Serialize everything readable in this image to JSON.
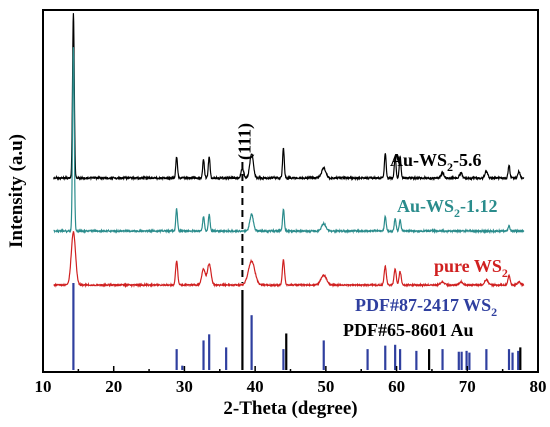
{
  "chart_data": {
    "type": "line",
    "title": "",
    "xlabel": "2-Theta (degree)",
    "ylabel": "Intensity (a.u)",
    "xlim": [
      10,
      80
    ],
    "x_ticks": [
      10,
      20,
      30,
      40,
      50,
      60,
      70,
      80
    ],
    "y_ticks": [],
    "grid": false,
    "annotation": {
      "text": "(111)",
      "x": 38.2
    },
    "series": [
      {
        "name_main": "Au-WS",
        "name_sub": "2",
        "name_tail": "-5.6",
        "color": "#000000",
        "peaks": [
          {
            "x": 14.3,
            "h": 1.0,
            "w": 0.12
          },
          {
            "x": 28.9,
            "h": 0.13,
            "w": 0.12
          },
          {
            "x": 32.7,
            "h": 0.11,
            "w": 0.12
          },
          {
            "x": 33.5,
            "h": 0.13,
            "w": 0.12
          },
          {
            "x": 38.2,
            "h": 0.06,
            "w": 0.18
          },
          {
            "x": 39.5,
            "h": 0.15,
            "w": 0.25
          },
          {
            "x": 44.0,
            "h": 0.18,
            "w": 0.12
          },
          {
            "x": 49.7,
            "h": 0.06,
            "w": 0.3
          },
          {
            "x": 58.4,
            "h": 0.15,
            "w": 0.12
          },
          {
            "x": 59.8,
            "h": 0.13,
            "w": 0.12
          },
          {
            "x": 60.5,
            "h": 0.13,
            "w": 0.12
          },
          {
            "x": 66.5,
            "h": 0.03,
            "w": 0.2
          },
          {
            "x": 69.1,
            "h": 0.03,
            "w": 0.2
          },
          {
            "x": 72.7,
            "h": 0.04,
            "w": 0.2
          },
          {
            "x": 75.9,
            "h": 0.08,
            "w": 0.12
          },
          {
            "x": 77.3,
            "h": 0.04,
            "w": 0.15
          }
        ]
      },
      {
        "name_main": "Au-WS",
        "name_sub": "2",
        "name_tail": "-1.12",
        "color": "#2a8c8c",
        "peaks": [
          {
            "x": 14.3,
            "h": 1.0,
            "w": 0.12
          },
          {
            "x": 28.9,
            "h": 0.12,
            "w": 0.12
          },
          {
            "x": 32.7,
            "h": 0.08,
            "w": 0.12
          },
          {
            "x": 33.5,
            "h": 0.09,
            "w": 0.12
          },
          {
            "x": 39.5,
            "h": 0.09,
            "w": 0.25
          },
          {
            "x": 44.0,
            "h": 0.12,
            "w": 0.12
          },
          {
            "x": 49.7,
            "h": 0.04,
            "w": 0.3
          },
          {
            "x": 58.4,
            "h": 0.08,
            "w": 0.12
          },
          {
            "x": 59.8,
            "h": 0.07,
            "w": 0.12
          },
          {
            "x": 60.5,
            "h": 0.06,
            "w": 0.12
          },
          {
            "x": 75.9,
            "h": 0.03,
            "w": 0.12
          }
        ]
      },
      {
        "name_main": "pure WS",
        "name_sub": "2",
        "name_tail": "",
        "color": "#d02020",
        "peaks": [
          {
            "x": 14.3,
            "h": 1.0,
            "w": 0.3
          },
          {
            "x": 28.9,
            "h": 0.45,
            "w": 0.15
          },
          {
            "x": 32.7,
            "h": 0.3,
            "w": 0.25
          },
          {
            "x": 33.5,
            "h": 0.4,
            "w": 0.25
          },
          {
            "x": 39.5,
            "h": 0.45,
            "w": 0.45
          },
          {
            "x": 44.0,
            "h": 0.48,
            "w": 0.15
          },
          {
            "x": 49.7,
            "h": 0.18,
            "w": 0.4
          },
          {
            "x": 58.4,
            "h": 0.35,
            "w": 0.15
          },
          {
            "x": 59.8,
            "h": 0.3,
            "w": 0.15
          },
          {
            "x": 60.5,
            "h": 0.25,
            "w": 0.15
          },
          {
            "x": 66.5,
            "h": 0.06,
            "w": 0.25
          },
          {
            "x": 69.1,
            "h": 0.06,
            "w": 0.25
          },
          {
            "x": 72.7,
            "h": 0.1,
            "w": 0.25
          },
          {
            "x": 75.9,
            "h": 0.18,
            "w": 0.15
          },
          {
            "x": 77.3,
            "h": 0.06,
            "w": 0.2
          }
        ]
      }
    ],
    "references": [
      {
        "name_main": "PDF#87-2417 WS",
        "name_sub": "2",
        "color": "#2f3f9f",
        "sticks": [
          {
            "x": 14.3,
            "h": 1.0
          },
          {
            "x": 28.9,
            "h": 0.24
          },
          {
            "x": 29.7,
            "h": 0.05
          },
          {
            "x": 32.7,
            "h": 0.34
          },
          {
            "x": 33.5,
            "h": 0.41
          },
          {
            "x": 35.9,
            "h": 0.26
          },
          {
            "x": 39.5,
            "h": 0.63
          },
          {
            "x": 44.0,
            "h": 0.24
          },
          {
            "x": 49.7,
            "h": 0.34
          },
          {
            "x": 55.9,
            "h": 0.24
          },
          {
            "x": 58.4,
            "h": 0.28
          },
          {
            "x": 59.8,
            "h": 0.29
          },
          {
            "x": 60.5,
            "h": 0.24
          },
          {
            "x": 62.8,
            "h": 0.22
          },
          {
            "x": 66.5,
            "h": 0.24
          },
          {
            "x": 68.8,
            "h": 0.21
          },
          {
            "x": 69.2,
            "h": 0.21
          },
          {
            "x": 69.9,
            "h": 0.22
          },
          {
            "x": 70.3,
            "h": 0.2
          },
          {
            "x": 72.7,
            "h": 0.24
          },
          {
            "x": 75.9,
            "h": 0.24
          },
          {
            "x": 76.4,
            "h": 0.2
          },
          {
            "x": 77.2,
            "h": 0.22
          }
        ]
      },
      {
        "name_main": "PDF#65-8601 Au",
        "name_sub": "",
        "color": "#000000",
        "sticks": [
          {
            "x": 38.2,
            "h": 0.92
          },
          {
            "x": 44.4,
            "h": 0.42
          },
          {
            "x": 64.6,
            "h": 0.24
          },
          {
            "x": 77.5,
            "h": 0.26
          }
        ]
      }
    ]
  }
}
